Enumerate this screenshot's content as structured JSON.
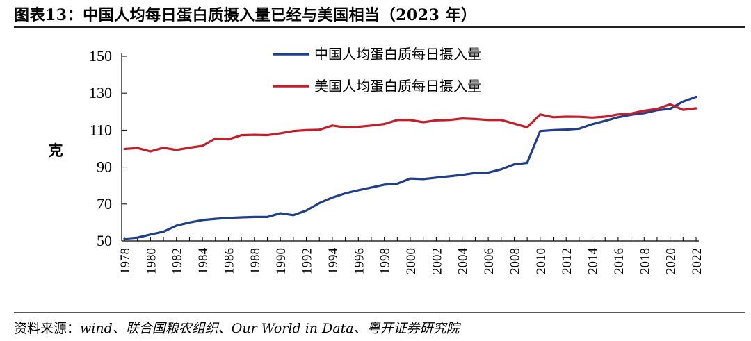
{
  "title": "图表13：中国人均每日蛋白质摄入量已经与美国相当（2023 年）",
  "source": {
    "label": "资料来源：",
    "body": "wind、联合国粮农组织、Our World in Data、粤开证券研究院"
  },
  "colors": {
    "china": "#1f3f8c",
    "usa": "#c41e2a",
    "axis": "#000000"
  },
  "chart_data": {
    "type": "line",
    "ylabel": "克",
    "xlabel": "",
    "ylim": [
      50,
      150
    ],
    "yticks": [
      50,
      70,
      90,
      110,
      130,
      150
    ],
    "xlim": [
      1978,
      2022
    ],
    "xticks": [
      1978,
      1980,
      1982,
      1984,
      1986,
      1988,
      1990,
      1992,
      1994,
      1996,
      1998,
      2000,
      2002,
      2004,
      2006,
      2008,
      2010,
      2012,
      2014,
      2016,
      2018,
      2020,
      2022
    ],
    "grid": false,
    "legend_position": "top-center",
    "x": [
      1978,
      1979,
      1980,
      1981,
      1982,
      1983,
      1984,
      1985,
      1986,
      1987,
      1988,
      1989,
      1990,
      1991,
      1992,
      1993,
      1994,
      1995,
      1996,
      1997,
      1998,
      1999,
      2000,
      2001,
      2002,
      2003,
      2004,
      2005,
      2006,
      2007,
      2008,
      2009,
      2010,
      2011,
      2012,
      2013,
      2014,
      2015,
      2016,
      2017,
      2018,
      2019,
      2020,
      2021,
      2022
    ],
    "series": [
      {
        "name": "中国人均蛋白质每日摄入量",
        "values": [
          51.2,
          51.8,
          53.5,
          55,
          58.3,
          60,
          61.3,
          62,
          62.5,
          62.8,
          63,
          63,
          65,
          64,
          66.5,
          70.5,
          73.5,
          75.8,
          77.5,
          79,
          80.5,
          81,
          83.8,
          83.5,
          84.3,
          85,
          85.8,
          86.8,
          87,
          88.8,
          91.5,
          92.3,
          109.5,
          110,
          110.3,
          110.8,
          113.2,
          115,
          117,
          118.3,
          119.2,
          120.8,
          121.5,
          125.5,
          128
        ]
      },
      {
        "name": "美国人均蛋白质每日摄入量",
        "values": [
          99.8,
          100.3,
          98.5,
          100.5,
          99.3,
          100.5,
          101.5,
          105.5,
          105,
          107.3,
          107.5,
          107.3,
          108.3,
          109.5,
          110,
          110.2,
          112.5,
          111.5,
          111.8,
          112.5,
          113.3,
          115.5,
          115.5,
          114.3,
          115.3,
          115.5,
          116.3,
          116,
          115.5,
          115.5,
          113.5,
          111.5,
          118.5,
          117,
          117.3,
          117.2,
          116.8,
          117.3,
          118.5,
          119,
          120.5,
          121.5,
          124,
          121,
          121.8
        ]
      }
    ]
  }
}
